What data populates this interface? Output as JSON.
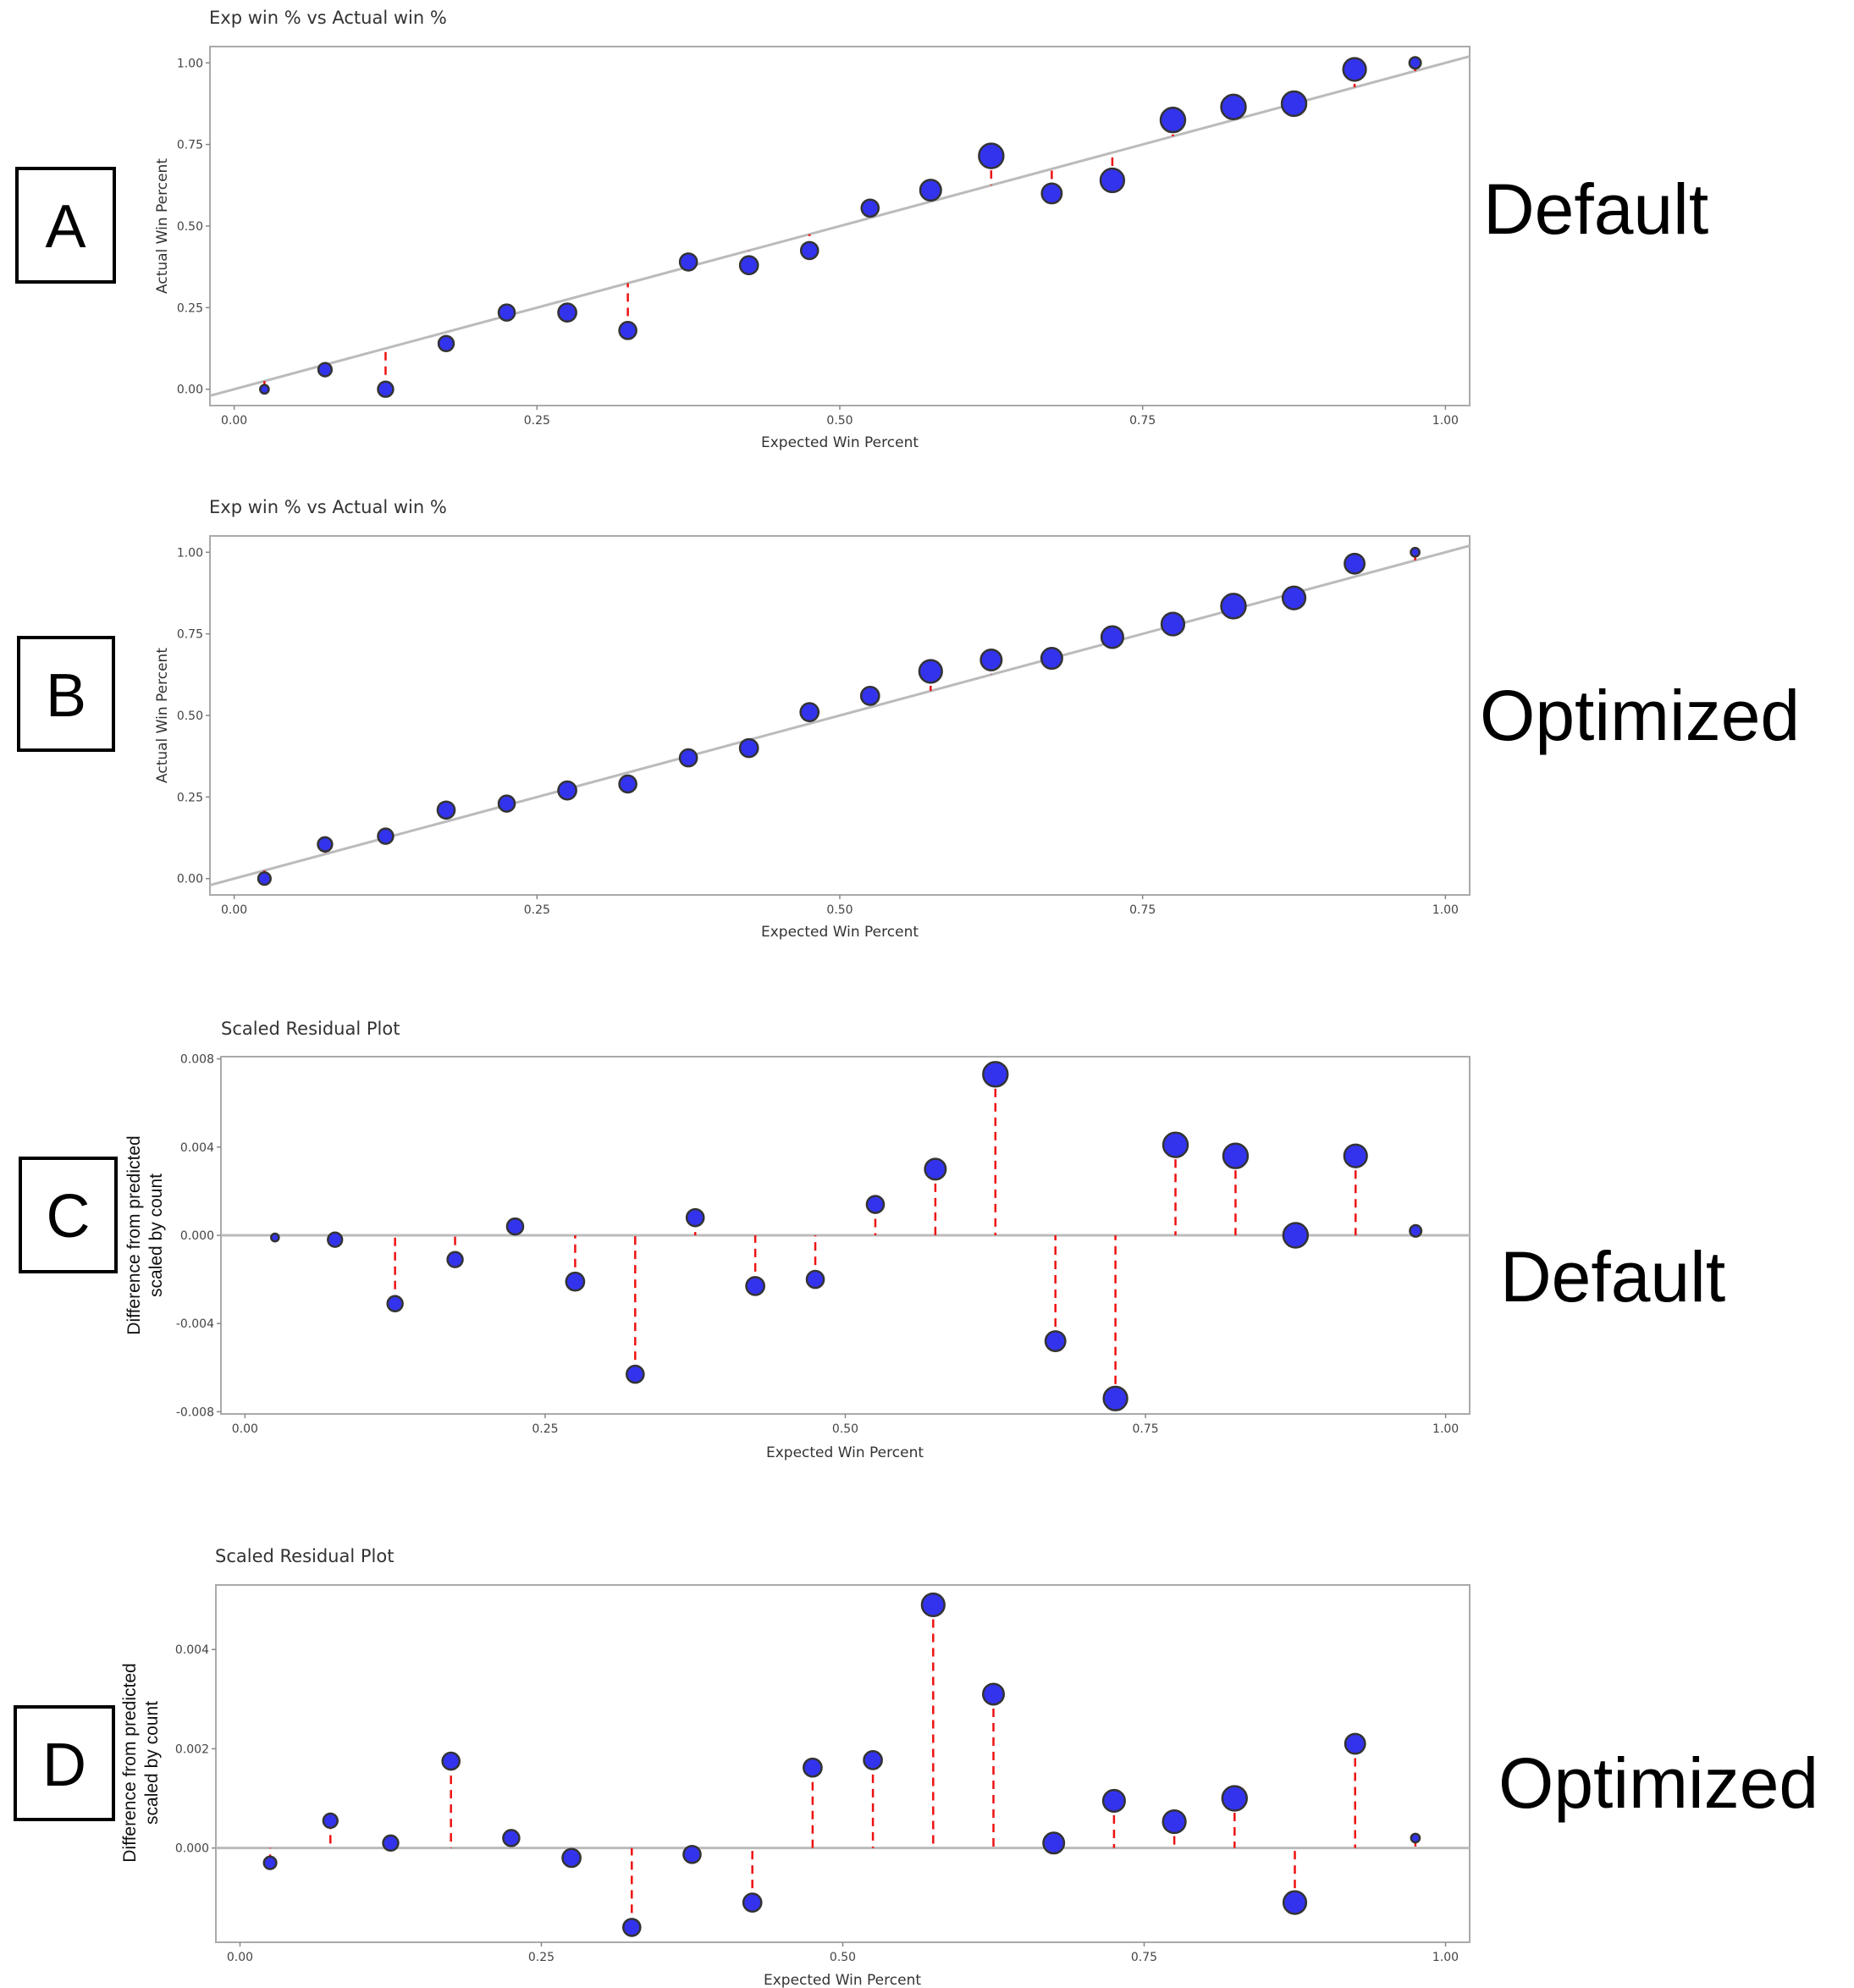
{
  "panels": [
    {
      "letter": "A",
      "side_label": "Default",
      "chart_data": {
        "type": "scatter",
        "title": "Exp win % vs Actual win %",
        "xlabel": "Expected Win Percent",
        "ylabel": "Actual Win Percent",
        "xlim": [
          -0.02,
          1.02
        ],
        "ylim": [
          -0.05,
          1.05
        ],
        "xticks": [
          0,
          0.25,
          0.5,
          0.75,
          1
        ],
        "xtick_labels": [
          "0.00",
          "0.25",
          "0.50",
          "0.75",
          "1.00"
        ],
        "yticks": [
          0,
          0.25,
          0.5,
          0.75,
          1
        ],
        "ytick_labels": [
          "0.00",
          "0.25",
          "0.50",
          "0.75",
          "1.00"
        ],
        "reference_line": "y = x",
        "residual_segments": "to y = x",
        "x": [
          0.025,
          0.075,
          0.125,
          0.175,
          0.225,
          0.275,
          0.325,
          0.375,
          0.425,
          0.475,
          0.525,
          0.575,
          0.625,
          0.675,
          0.725,
          0.775,
          0.825,
          0.875,
          0.925,
          0.975
        ],
        "y": [
          0.0,
          0.06,
          0.0,
          0.14,
          0.235,
          0.235,
          0.18,
          0.39,
          0.38,
          0.425,
          0.555,
          0.61,
          0.715,
          0.6,
          0.64,
          0.825,
          0.865,
          0.875,
          0.98,
          1.0
        ],
        "size": [
          0.1,
          0.35,
          0.45,
          0.45,
          0.5,
          0.6,
          0.55,
          0.55,
          0.6,
          0.55,
          0.55,
          0.75,
          0.95,
          0.7,
          0.9,
          0.95,
          0.95,
          0.95,
          0.85,
          0.25
        ],
        "colors": {
          "point": "#3333ee",
          "point_outline": "#333333",
          "residual": "#ee1111",
          "reference": "#bbbbbb",
          "frame": "#aaaaaa"
        }
      }
    },
    {
      "letter": "B",
      "side_label": "Optimized",
      "chart_data": {
        "type": "scatter",
        "title": "Exp win % vs Actual win %",
        "xlabel": "Expected Win Percent",
        "ylabel": "Actual Win Percent",
        "xlim": [
          -0.02,
          1.02
        ],
        "ylim": [
          -0.05,
          1.05
        ],
        "xticks": [
          0,
          0.25,
          0.5,
          0.75,
          1
        ],
        "xtick_labels": [
          "0.00",
          "0.25",
          "0.50",
          "0.75",
          "1.00"
        ],
        "yticks": [
          0,
          0.25,
          0.5,
          0.75,
          1
        ],
        "ytick_labels": [
          "0.00",
          "0.25",
          "0.50",
          "0.75",
          "1.00"
        ],
        "reference_line": "y = x",
        "residual_segments": "to y = x",
        "x": [
          0.025,
          0.075,
          0.125,
          0.175,
          0.225,
          0.275,
          0.325,
          0.375,
          0.425,
          0.475,
          0.525,
          0.575,
          0.625,
          0.675,
          0.725,
          0.775,
          0.825,
          0.875,
          0.925,
          0.975
        ],
        "y": [
          0.0,
          0.105,
          0.13,
          0.21,
          0.23,
          0.27,
          0.29,
          0.37,
          0.4,
          0.51,
          0.56,
          0.635,
          0.67,
          0.675,
          0.74,
          0.78,
          0.835,
          0.86,
          0.965,
          1.0
        ],
        "size": [
          0.3,
          0.4,
          0.45,
          0.55,
          0.5,
          0.6,
          0.55,
          0.55,
          0.6,
          0.6,
          0.6,
          0.85,
          0.75,
          0.75,
          0.8,
          0.85,
          0.95,
          0.85,
          0.7,
          0.1
        ],
        "colors": {
          "point": "#3333ee",
          "point_outline": "#333333",
          "residual": "#ee1111",
          "reference": "#bbbbbb",
          "frame": "#aaaaaa"
        }
      }
    },
    {
      "letter": "C",
      "side_label": "Default",
      "chart_data": {
        "type": "scatter",
        "title": "Scaled Residual Plot",
        "xlabel": "Expected Win Percent",
        "ylabel": "Difference from predicted\nscaled by count",
        "xlim": [
          -0.02,
          1.02
        ],
        "ylim": [
          -0.0081,
          0.0081
        ],
        "xticks": [
          0,
          0.25,
          0.5,
          0.75,
          1
        ],
        "xtick_labels": [
          "0.00",
          "0.25",
          "0.50",
          "0.75",
          "1.00"
        ],
        "yticks": [
          -0.008,
          -0.004,
          0,
          0.004,
          0.008
        ],
        "ytick_labels": [
          "-0.008",
          "-0.004",
          "0.000",
          "0.004",
          "0.008"
        ],
        "reference_line": "y = 0",
        "residual_segments": "to y = 0",
        "x": [
          0.025,
          0.075,
          0.125,
          0.175,
          0.225,
          0.275,
          0.325,
          0.375,
          0.425,
          0.475,
          0.525,
          0.575,
          0.625,
          0.675,
          0.725,
          0.775,
          0.825,
          0.875,
          0.925,
          0.975
        ],
        "y": [
          -0.0001,
          -0.0002,
          -0.0031,
          -0.0011,
          0.0004,
          -0.0021,
          -0.0063,
          0.0008,
          -0.0023,
          -0.002,
          0.0014,
          0.003,
          0.0073,
          -0.0048,
          -0.0074,
          0.0041,
          0.0036,
          0.0,
          0.0036,
          0.0002
        ],
        "size": [
          0.05,
          0.4,
          0.45,
          0.45,
          0.5,
          0.6,
          0.55,
          0.55,
          0.6,
          0.55,
          0.55,
          0.75,
          0.95,
          0.7,
          0.9,
          0.95,
          0.95,
          0.95,
          0.85,
          0.25
        ],
        "colors": {
          "point": "#3333ee",
          "point_outline": "#333333",
          "residual": "#ee1111",
          "reference": "#bbbbbb",
          "frame": "#aaaaaa"
        }
      }
    },
    {
      "letter": "D",
      "side_label": "Optimized",
      "chart_data": {
        "type": "scatter",
        "title": "Scaled Residual Plot",
        "xlabel": "Expected Win Percent",
        "ylabel": "Difference from predicted\nscaled by count",
        "xlim": [
          -0.02,
          1.02
        ],
        "ylim": [
          -0.0019,
          0.0053
        ],
        "xticks": [
          0,
          0.25,
          0.5,
          0.75,
          1
        ],
        "xtick_labels": [
          "0.00",
          "0.25",
          "0.50",
          "0.75",
          "1.00"
        ],
        "yticks": [
          0,
          0.002,
          0.004
        ],
        "ytick_labels": [
          "0.000",
          "0.002",
          "0.004"
        ],
        "reference_line": "y = 0",
        "residual_segments": "to y = 0",
        "x": [
          0.025,
          0.075,
          0.125,
          0.175,
          0.225,
          0.275,
          0.325,
          0.375,
          0.425,
          0.475,
          0.525,
          0.575,
          0.625,
          0.675,
          0.725,
          0.775,
          0.825,
          0.875,
          0.925,
          0.975
        ],
        "y": [
          -0.0003,
          0.00055,
          0.0001,
          0.00175,
          0.0002,
          -0.0002,
          -0.0016,
          -0.00013,
          -0.0011,
          0.00162,
          0.00177,
          0.0049,
          0.0031,
          0.0001,
          0.00095,
          0.00053,
          0.001,
          -0.0011,
          0.0021,
          0.0002
        ],
        "size": [
          0.3,
          0.4,
          0.45,
          0.55,
          0.5,
          0.6,
          0.55,
          0.55,
          0.6,
          0.6,
          0.6,
          0.85,
          0.75,
          0.75,
          0.8,
          0.85,
          0.95,
          0.85,
          0.7,
          0.1
        ],
        "colors": {
          "point": "#3333ee",
          "point_outline": "#333333",
          "residual": "#ee1111",
          "reference": "#bbbbbb",
          "frame": "#aaaaaa"
        }
      }
    }
  ]
}
